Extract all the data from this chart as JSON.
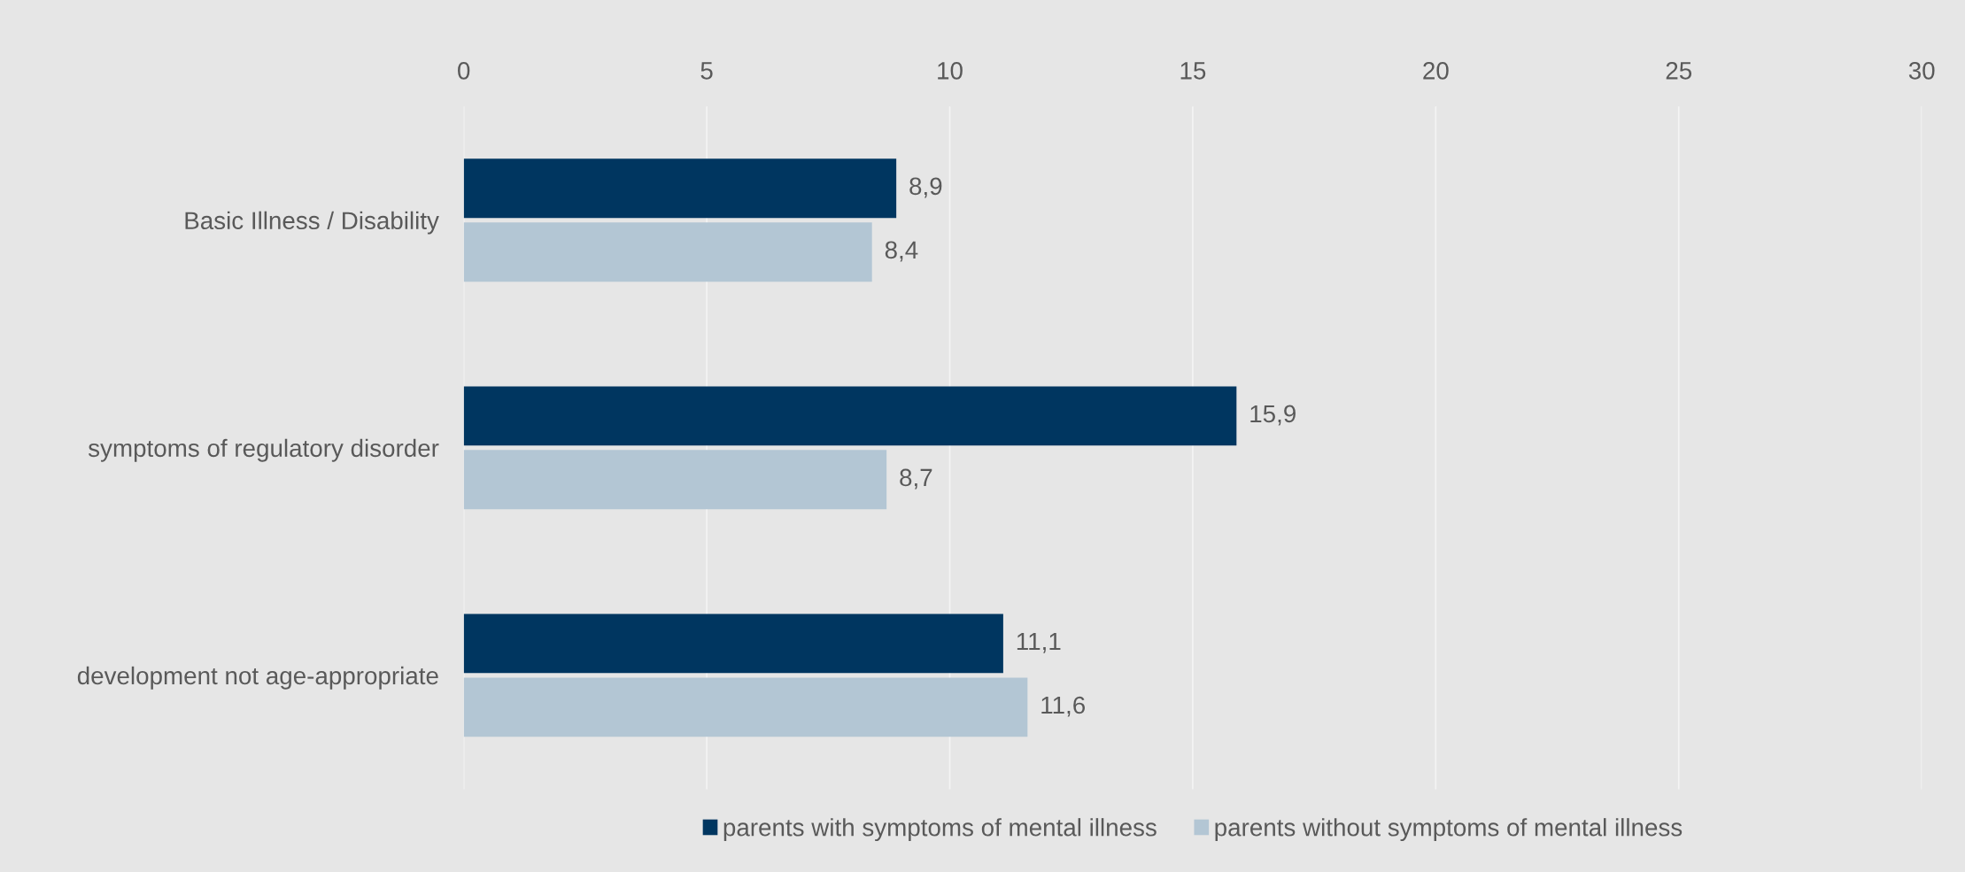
{
  "chart_data": {
    "type": "bar",
    "orientation": "horizontal",
    "categories": [
      "Basic Illness / Disability",
      "symptoms of regulatory disorder",
      "development not age-appropriate"
    ],
    "series": [
      {
        "name": "parents with symptoms of mental illness",
        "color": "#003660",
        "values": [
          8.9,
          15.9,
          11.1
        ],
        "value_labels": [
          "8,9",
          "15,9",
          "11,1"
        ]
      },
      {
        "name": "parents without symptoms of mental illness",
        "color": "#b3c6d4",
        "values": [
          8.4,
          8.7,
          11.6
        ],
        "value_labels": [
          "8,4",
          "8,7",
          "11,6"
        ]
      }
    ],
    "xlim": [
      0,
      30
    ],
    "xticks": [
      0,
      5,
      10,
      15,
      20,
      25,
      30
    ],
    "grid": "x",
    "legend": "bottom"
  }
}
